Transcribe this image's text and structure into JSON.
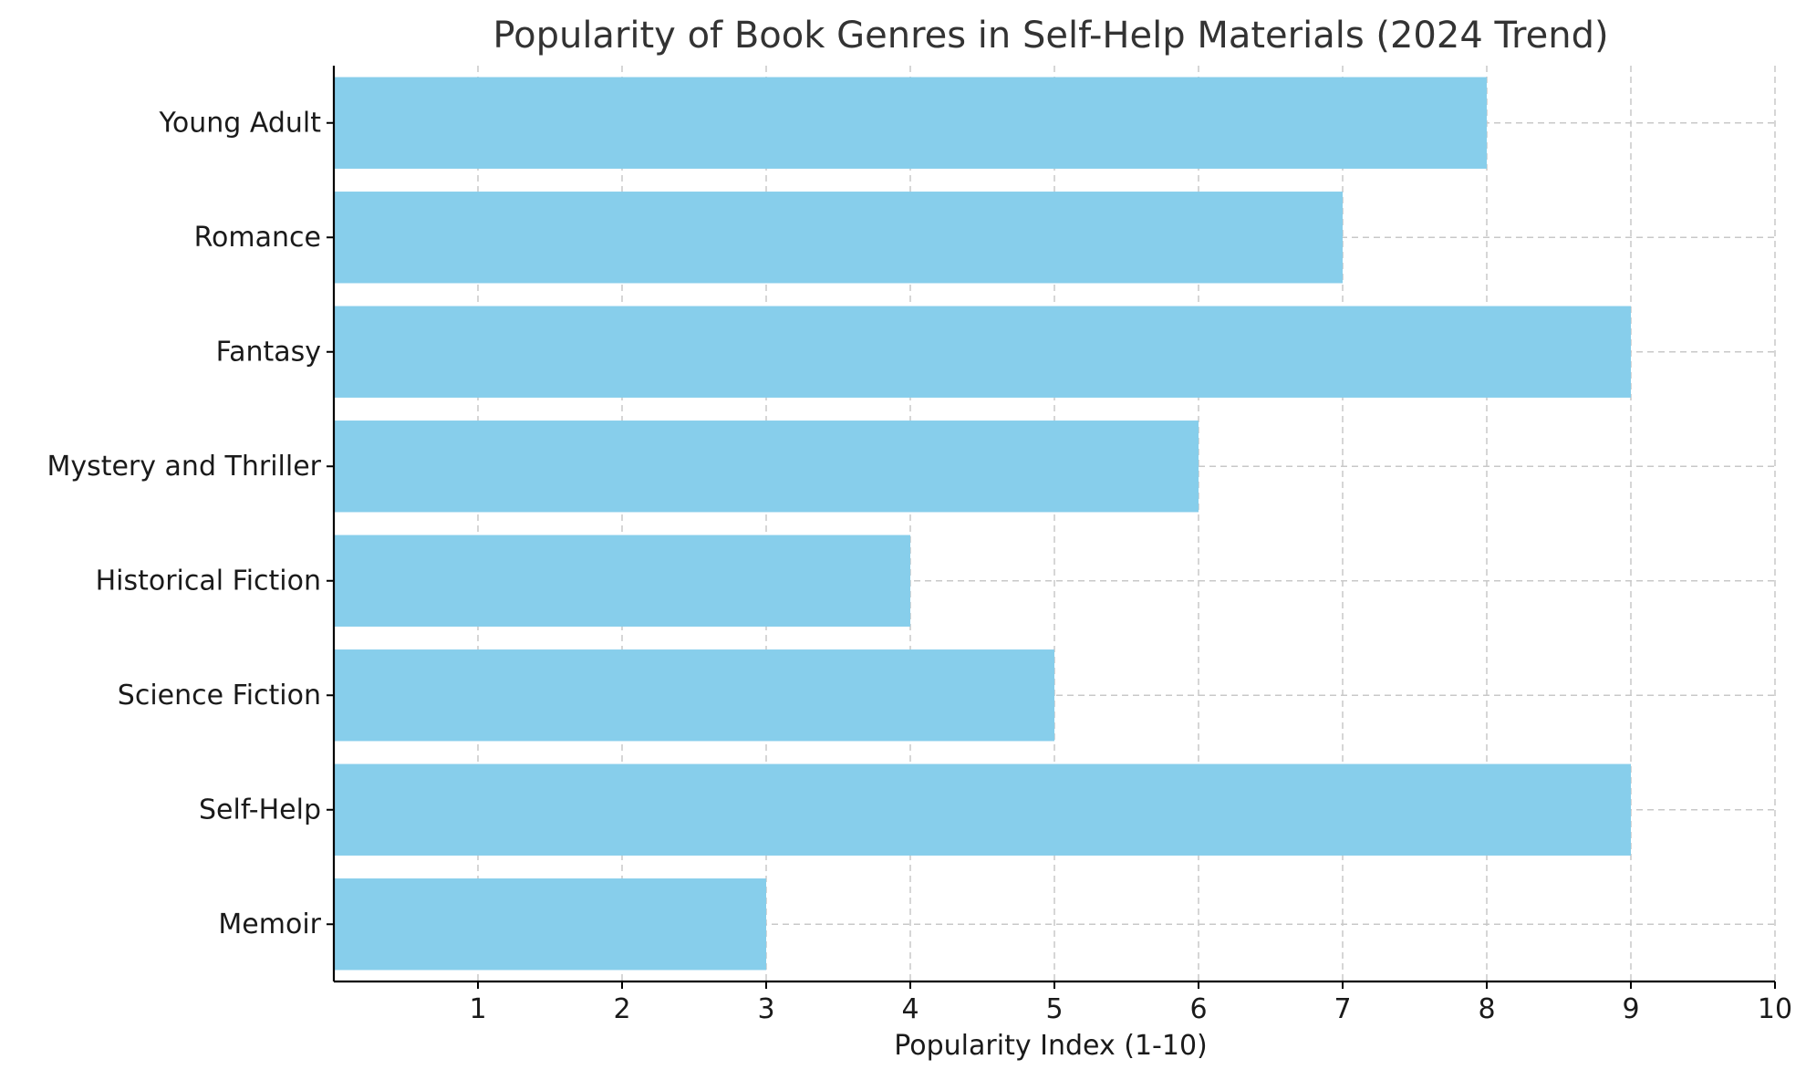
{
  "chart_data": {
    "type": "bar",
    "orientation": "horizontal",
    "title": "Popularity of Book Genres in Self-Help Materials (2024 Trend)",
    "xlabel": "Popularity Index (1-10)",
    "ylabel": "",
    "categories": [
      "Memoir",
      "Self-Help",
      "Science Fiction",
      "Historical Fiction",
      "Mystery and Thriller",
      "Fantasy",
      "Romance",
      "Young Adult"
    ],
    "values": [
      3,
      9,
      5,
      4,
      6,
      9,
      7,
      8
    ],
    "xlim": [
      0,
      10
    ],
    "xticks": [
      "1",
      "2",
      "3",
      "4",
      "5",
      "6",
      "7",
      "8",
      "9",
      "10"
    ],
    "grid": true,
    "bar_color": "#87CEEB"
  }
}
